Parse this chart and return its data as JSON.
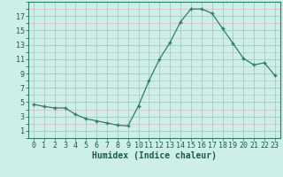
{
  "x": [
    0,
    1,
    2,
    3,
    4,
    5,
    6,
    7,
    8,
    9,
    10,
    11,
    12,
    13,
    14,
    15,
    16,
    17,
    18,
    19,
    20,
    21,
    22,
    23
  ],
  "y": [
    4.7,
    4.4,
    4.2,
    4.2,
    3.3,
    2.7,
    2.4,
    2.1,
    1.8,
    1.7,
    4.5,
    8.0,
    11.0,
    13.3,
    16.2,
    18.0,
    18.0,
    17.4,
    15.3,
    13.2,
    11.1,
    10.2,
    10.5,
    8.7
  ],
  "xlabel": "Humidex (Indice chaleur)",
  "xlim": [
    -0.5,
    23.5
  ],
  "ylim": [
    0,
    19
  ],
  "xticks": [
    0,
    1,
    2,
    3,
    4,
    5,
    6,
    7,
    8,
    9,
    10,
    11,
    12,
    13,
    14,
    15,
    16,
    17,
    18,
    19,
    20,
    21,
    22,
    23
  ],
  "yticks": [
    1,
    3,
    5,
    7,
    9,
    11,
    13,
    15,
    17
  ],
  "line_color": "#2d7d6e",
  "bg_color": "#ceeee8",
  "minor_grid_color": "#ddb8b8",
  "major_grid_color": "#aacece",
  "xlabel_fontsize": 7,
  "tick_fontsize": 6
}
